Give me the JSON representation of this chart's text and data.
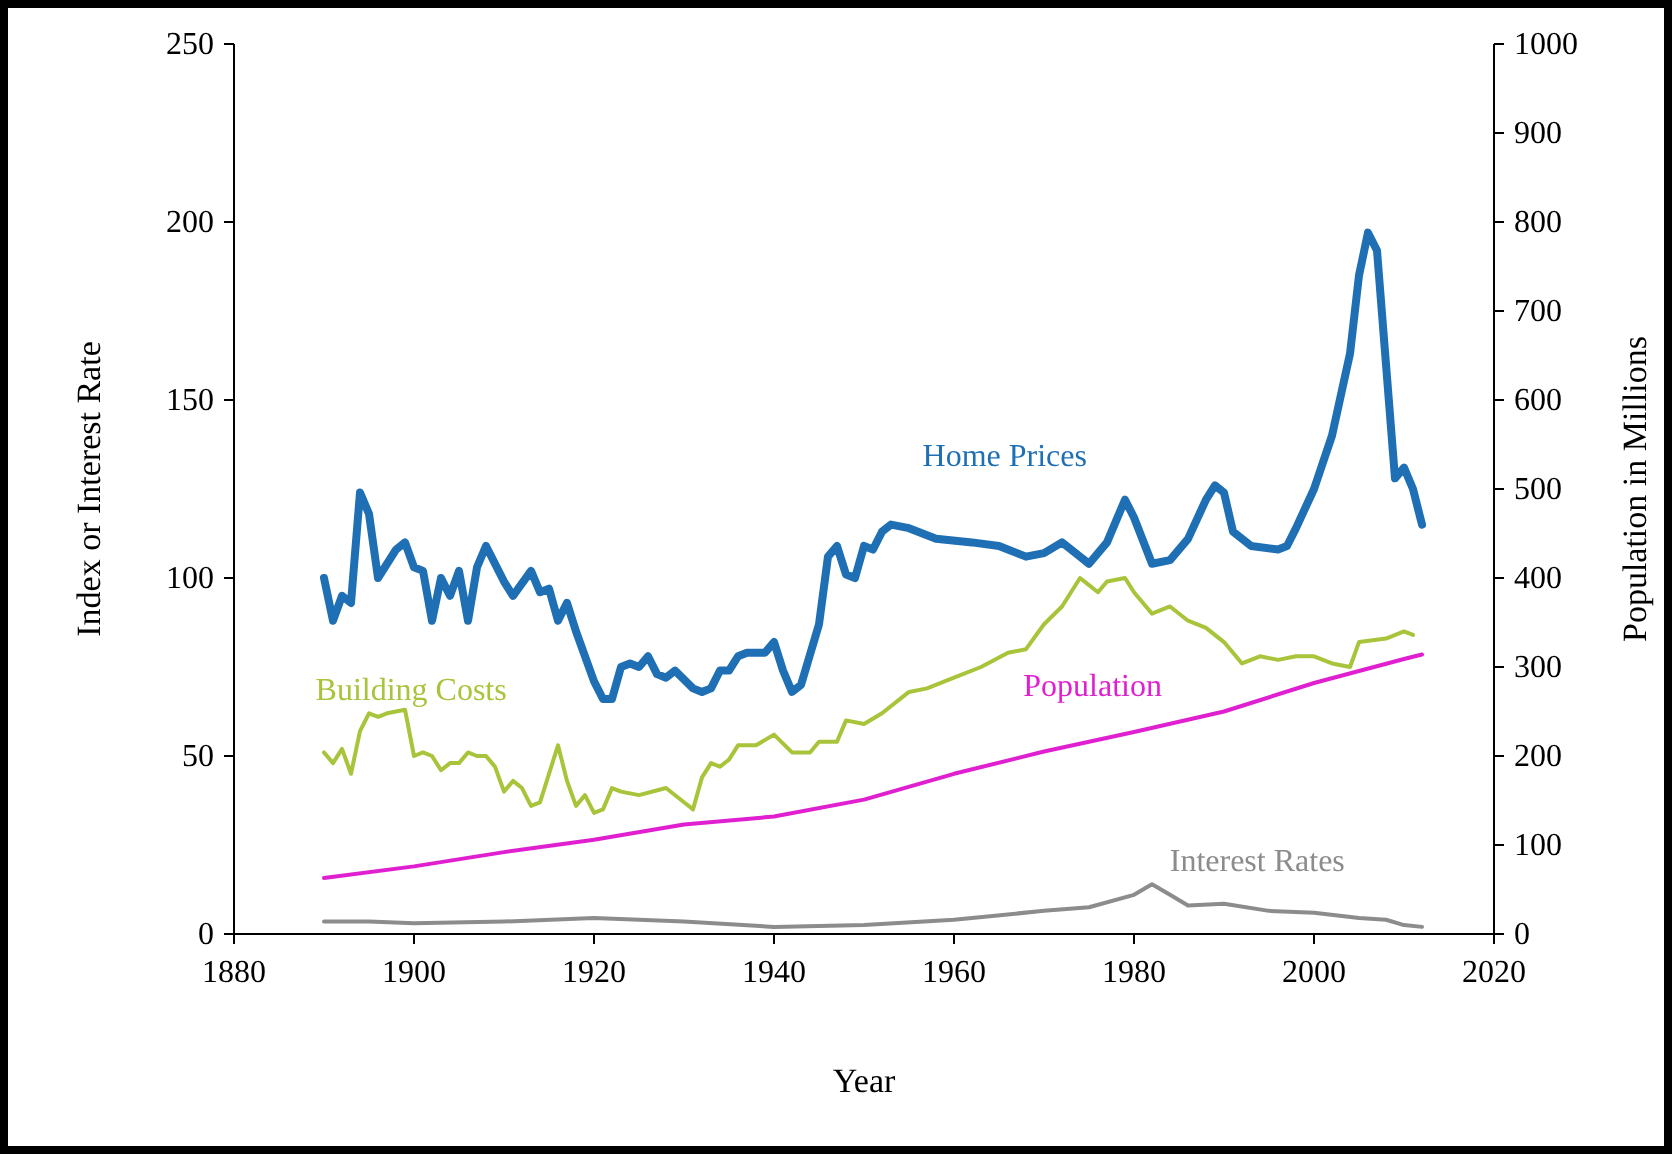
{
  "chart_data": {
    "type": "line",
    "xlabel": "Year",
    "ylabel": "Index or Interest Rate",
    "y2label": "Population in Millions",
    "xlim": [
      1880,
      2020
    ],
    "xticks": [
      1880,
      1900,
      1920,
      1940,
      1960,
      1980,
      2000,
      2020
    ],
    "ylim": [
      0,
      250
    ],
    "yticks": [
      0,
      50,
      100,
      150,
      200,
      250
    ],
    "y2lim": [
      0,
      1000
    ],
    "y2ticks": [
      0,
      100,
      200,
      300,
      400,
      500,
      600,
      700,
      800,
      900,
      1000
    ],
    "grid": false,
    "marker": "none",
    "line_style": "solid",
    "series": [
      {
        "name": "Home Prices",
        "color": "#1f6fb5",
        "x": [
          1890,
          1891,
          1892,
          1893,
          1894,
          1895,
          1896,
          1898,
          1899,
          1900,
          1901,
          1902,
          1903,
          1904,
          1905,
          1906,
          1907,
          1908,
          1910,
          1911,
          1913,
          1914,
          1915,
          1916,
          1917,
          1918,
          1920,
          1921,
          1922,
          1923,
          1924,
          1925,
          1926,
          1927,
          1928,
          1929,
          1931,
          1932,
          1933,
          1934,
          1935,
          1936,
          1937,
          1938,
          1939,
          1940,
          1941,
          1942,
          1943,
          1945,
          1946,
          1947,
          1948,
          1949,
          1950,
          1951,
          1952,
          1953,
          1955,
          1958,
          1962,
          1965,
          1968,
          1970,
          1972,
          1974,
          1975,
          1977,
          1979,
          1980,
          1982,
          1984,
          1986,
          1988,
          1989,
          1990,
          1991,
          1993,
          1996,
          1997,
          1998,
          2000,
          2002,
          2004,
          2005,
          2006,
          2007,
          2008,
          2009,
          2010,
          2011,
          2012
        ],
        "values": [
          100,
          88,
          95,
          93,
          124,
          118,
          100,
          108,
          110,
          103,
          102,
          88,
          100,
          95,
          102,
          88,
          103,
          109,
          99,
          95,
          102,
          96,
          97,
          88,
          93,
          85,
          71,
          66,
          66,
          75,
          76,
          75,
          78,
          73,
          72,
          74,
          69,
          68,
          69,
          74,
          74,
          78,
          79,
          79,
          79,
          82,
          74,
          68,
          70,
          87,
          106,
          109,
          101,
          100,
          109,
          108,
          113,
          115,
          114,
          111,
          110,
          109,
          106,
          107,
          110,
          106,
          104,
          110,
          122,
          117,
          104,
          105,
          111,
          122,
          126,
          124,
          113,
          109,
          108,
          109,
          114,
          125,
          140,
          163,
          185,
          197,
          192,
          160,
          128,
          131,
          125,
          115
        ]
      },
      {
        "name": "Building Costs",
        "color": "#a8c43a",
        "x": [
          1890,
          1891,
          1892,
          1893,
          1894,
          1895,
          1896,
          1897,
          1899,
          1900,
          1901,
          1902,
          1903,
          1904,
          1905,
          1906,
          1907,
          1908,
          1909,
          1910,
          1911,
          1912,
          1913,
          1914,
          1916,
          1917,
          1918,
          1919,
          1920,
          1921,
          1922,
          1923,
          1925,
          1928,
          1930,
          1931,
          1932,
          1933,
          1934,
          1935,
          1936,
          1938,
          1940,
          1942,
          1944,
          1945,
          1947,
          1948,
          1950,
          1952,
          1955,
          1957,
          1960,
          1963,
          1966,
          1968,
          1970,
          1972,
          1974,
          1975,
          1976,
          1977,
          1979,
          1980,
          1981,
          1982,
          1984,
          1986,
          1988,
          1990,
          1992,
          1994,
          1996,
          1998,
          2000,
          2002,
          2004,
          2005,
          2008,
          2010,
          2011
        ],
        "values": [
          51,
          48,
          52,
          45,
          57,
          62,
          61,
          62,
          63,
          50,
          51,
          50,
          46,
          48,
          48,
          51,
          50,
          50,
          47,
          40,
          43,
          41,
          36,
          37,
          53,
          43,
          36,
          39,
          34,
          35,
          41,
          40,
          39,
          41,
          37,
          35,
          44,
          48,
          47,
          49,
          53,
          53,
          56,
          51,
          51,
          54,
          54,
          60,
          59,
          62,
          68,
          69,
          72,
          75,
          79,
          80,
          87,
          92,
          100,
          98,
          96,
          99,
          100,
          96,
          93,
          90,
          92,
          88,
          86,
          82,
          76,
          78,
          77,
          78,
          78,
          76,
          75,
          82,
          83,
          85,
          84
        ]
      },
      {
        "name": "Population",
        "color": "#e020d0",
        "axis": "y2",
        "x": [
          1890,
          1900,
          1910,
          1920,
          1930,
          1940,
          1950,
          1960,
          1970,
          1980,
          1990,
          2000,
          2010,
          2012
        ],
        "values": [
          63,
          76,
          92,
          106,
          123,
          132,
          151,
          180,
          205,
          227,
          250,
          282,
          309,
          314
        ]
      },
      {
        "name": "Interest Rates",
        "color": "#8c8c8c",
        "x": [
          1890,
          1895,
          1900,
          1910,
          1920,
          1930,
          1940,
          1950,
          1960,
          1970,
          1975,
          1980,
          1982,
          1984,
          1986,
          1990,
          1995,
          2000,
          2005,
          2008,
          2010,
          2012
        ],
        "values": [
          3.5,
          3.5,
          3,
          3.5,
          4.5,
          3.5,
          2,
          2.5,
          4,
          6.5,
          7.5,
          11,
          14,
          11,
          8,
          8.5,
          6.5,
          6,
          4.5,
          4,
          2.5,
          2
        ]
      }
    ]
  }
}
